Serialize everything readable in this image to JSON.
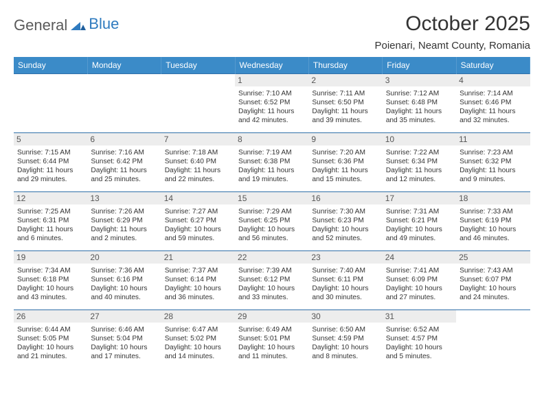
{
  "brand": {
    "word1": "General",
    "word2": "Blue"
  },
  "title": "October 2025",
  "location": "Poienari, Neamt County, Romania",
  "colors": {
    "header_bg": "#3b8bc8",
    "row_border": "#2f6fa8",
    "daynum_bg": "#ededed",
    "text": "#333333",
    "logo_gray": "#5a5a5a",
    "logo_blue": "#2f7bbf",
    "page_bg": "#ffffff"
  },
  "weekdays": [
    "Sunday",
    "Monday",
    "Tuesday",
    "Wednesday",
    "Thursday",
    "Friday",
    "Saturday"
  ],
  "weeks": [
    [
      {
        "n": "",
        "sr": "",
        "ss": "",
        "dl": ""
      },
      {
        "n": "",
        "sr": "",
        "ss": "",
        "dl": ""
      },
      {
        "n": "",
        "sr": "",
        "ss": "",
        "dl": ""
      },
      {
        "n": "1",
        "sr": "Sunrise: 7:10 AM",
        "ss": "Sunset: 6:52 PM",
        "dl": "Daylight: 11 hours and 42 minutes."
      },
      {
        "n": "2",
        "sr": "Sunrise: 7:11 AM",
        "ss": "Sunset: 6:50 PM",
        "dl": "Daylight: 11 hours and 39 minutes."
      },
      {
        "n": "3",
        "sr": "Sunrise: 7:12 AM",
        "ss": "Sunset: 6:48 PM",
        "dl": "Daylight: 11 hours and 35 minutes."
      },
      {
        "n": "4",
        "sr": "Sunrise: 7:14 AM",
        "ss": "Sunset: 6:46 PM",
        "dl": "Daylight: 11 hours and 32 minutes."
      }
    ],
    [
      {
        "n": "5",
        "sr": "Sunrise: 7:15 AM",
        "ss": "Sunset: 6:44 PM",
        "dl": "Daylight: 11 hours and 29 minutes."
      },
      {
        "n": "6",
        "sr": "Sunrise: 7:16 AM",
        "ss": "Sunset: 6:42 PM",
        "dl": "Daylight: 11 hours and 25 minutes."
      },
      {
        "n": "7",
        "sr": "Sunrise: 7:18 AM",
        "ss": "Sunset: 6:40 PM",
        "dl": "Daylight: 11 hours and 22 minutes."
      },
      {
        "n": "8",
        "sr": "Sunrise: 7:19 AM",
        "ss": "Sunset: 6:38 PM",
        "dl": "Daylight: 11 hours and 19 minutes."
      },
      {
        "n": "9",
        "sr": "Sunrise: 7:20 AM",
        "ss": "Sunset: 6:36 PM",
        "dl": "Daylight: 11 hours and 15 minutes."
      },
      {
        "n": "10",
        "sr": "Sunrise: 7:22 AM",
        "ss": "Sunset: 6:34 PM",
        "dl": "Daylight: 11 hours and 12 minutes."
      },
      {
        "n": "11",
        "sr": "Sunrise: 7:23 AM",
        "ss": "Sunset: 6:32 PM",
        "dl": "Daylight: 11 hours and 9 minutes."
      }
    ],
    [
      {
        "n": "12",
        "sr": "Sunrise: 7:25 AM",
        "ss": "Sunset: 6:31 PM",
        "dl": "Daylight: 11 hours and 6 minutes."
      },
      {
        "n": "13",
        "sr": "Sunrise: 7:26 AM",
        "ss": "Sunset: 6:29 PM",
        "dl": "Daylight: 11 hours and 2 minutes."
      },
      {
        "n": "14",
        "sr": "Sunrise: 7:27 AM",
        "ss": "Sunset: 6:27 PM",
        "dl": "Daylight: 10 hours and 59 minutes."
      },
      {
        "n": "15",
        "sr": "Sunrise: 7:29 AM",
        "ss": "Sunset: 6:25 PM",
        "dl": "Daylight: 10 hours and 56 minutes."
      },
      {
        "n": "16",
        "sr": "Sunrise: 7:30 AM",
        "ss": "Sunset: 6:23 PM",
        "dl": "Daylight: 10 hours and 52 minutes."
      },
      {
        "n": "17",
        "sr": "Sunrise: 7:31 AM",
        "ss": "Sunset: 6:21 PM",
        "dl": "Daylight: 10 hours and 49 minutes."
      },
      {
        "n": "18",
        "sr": "Sunrise: 7:33 AM",
        "ss": "Sunset: 6:19 PM",
        "dl": "Daylight: 10 hours and 46 minutes."
      }
    ],
    [
      {
        "n": "19",
        "sr": "Sunrise: 7:34 AM",
        "ss": "Sunset: 6:18 PM",
        "dl": "Daylight: 10 hours and 43 minutes."
      },
      {
        "n": "20",
        "sr": "Sunrise: 7:36 AM",
        "ss": "Sunset: 6:16 PM",
        "dl": "Daylight: 10 hours and 40 minutes."
      },
      {
        "n": "21",
        "sr": "Sunrise: 7:37 AM",
        "ss": "Sunset: 6:14 PM",
        "dl": "Daylight: 10 hours and 36 minutes."
      },
      {
        "n": "22",
        "sr": "Sunrise: 7:39 AM",
        "ss": "Sunset: 6:12 PM",
        "dl": "Daylight: 10 hours and 33 minutes."
      },
      {
        "n": "23",
        "sr": "Sunrise: 7:40 AM",
        "ss": "Sunset: 6:11 PM",
        "dl": "Daylight: 10 hours and 30 minutes."
      },
      {
        "n": "24",
        "sr": "Sunrise: 7:41 AM",
        "ss": "Sunset: 6:09 PM",
        "dl": "Daylight: 10 hours and 27 minutes."
      },
      {
        "n": "25",
        "sr": "Sunrise: 7:43 AM",
        "ss": "Sunset: 6:07 PM",
        "dl": "Daylight: 10 hours and 24 minutes."
      }
    ],
    [
      {
        "n": "26",
        "sr": "Sunrise: 6:44 AM",
        "ss": "Sunset: 5:05 PM",
        "dl": "Daylight: 10 hours and 21 minutes."
      },
      {
        "n": "27",
        "sr": "Sunrise: 6:46 AM",
        "ss": "Sunset: 5:04 PM",
        "dl": "Daylight: 10 hours and 17 minutes."
      },
      {
        "n": "28",
        "sr": "Sunrise: 6:47 AM",
        "ss": "Sunset: 5:02 PM",
        "dl": "Daylight: 10 hours and 14 minutes."
      },
      {
        "n": "29",
        "sr": "Sunrise: 6:49 AM",
        "ss": "Sunset: 5:01 PM",
        "dl": "Daylight: 10 hours and 11 minutes."
      },
      {
        "n": "30",
        "sr": "Sunrise: 6:50 AM",
        "ss": "Sunset: 4:59 PM",
        "dl": "Daylight: 10 hours and 8 minutes."
      },
      {
        "n": "31",
        "sr": "Sunrise: 6:52 AM",
        "ss": "Sunset: 4:57 PM",
        "dl": "Daylight: 10 hours and 5 minutes."
      },
      {
        "n": "",
        "sr": "",
        "ss": "",
        "dl": ""
      }
    ]
  ]
}
